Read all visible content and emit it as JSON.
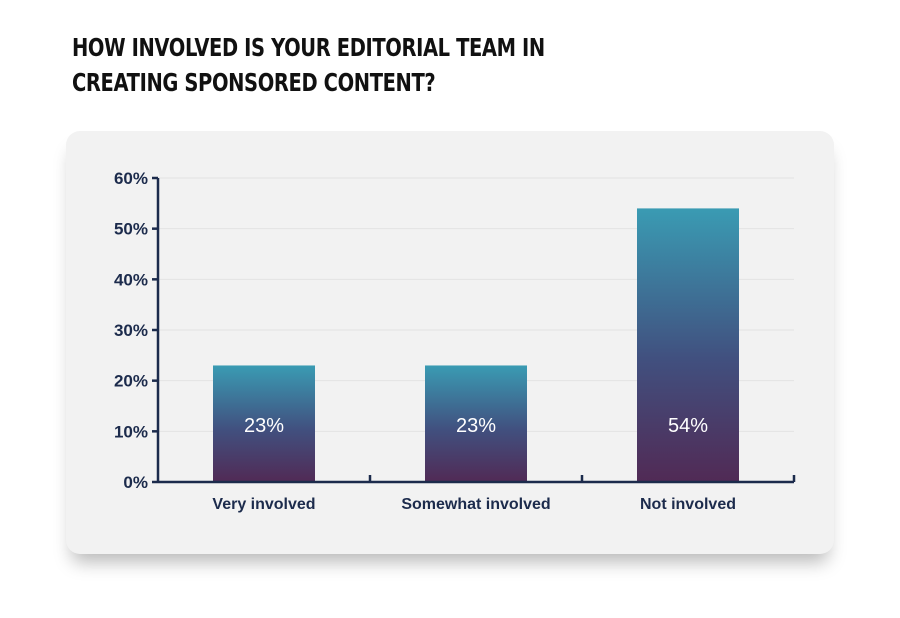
{
  "title": "HOW INVOLVED IS YOUR EDITORIAL TEAM IN CREATING SPONSORED CONTENT?",
  "chart_data": {
    "type": "bar",
    "title": "HOW INVOLVED IS YOUR EDITORIAL TEAM IN CREATING SPONSORED CONTENT?",
    "categories": [
      "Very involved",
      "Somewhat involved",
      "Not involved"
    ],
    "values": [
      23,
      23,
      54
    ],
    "data_labels": [
      "23%",
      "23%",
      "54%"
    ],
    "ylim": [
      0,
      60
    ],
    "yticks": [
      0,
      10,
      20,
      30,
      40,
      50,
      60
    ],
    "ytick_labels": [
      "0%",
      "10%",
      "20%",
      "30%",
      "40%",
      "50%",
      "60%"
    ],
    "xlabel": "",
    "ylabel": "",
    "grid": true,
    "colors": {
      "bar_top": "#3a9bb3",
      "bar_mid": "#41507f",
      "bar_bottom": "#512a55",
      "axis": "#1c2b4c",
      "grid": "#e3e3e3",
      "card": "#f2f2f2"
    }
  }
}
